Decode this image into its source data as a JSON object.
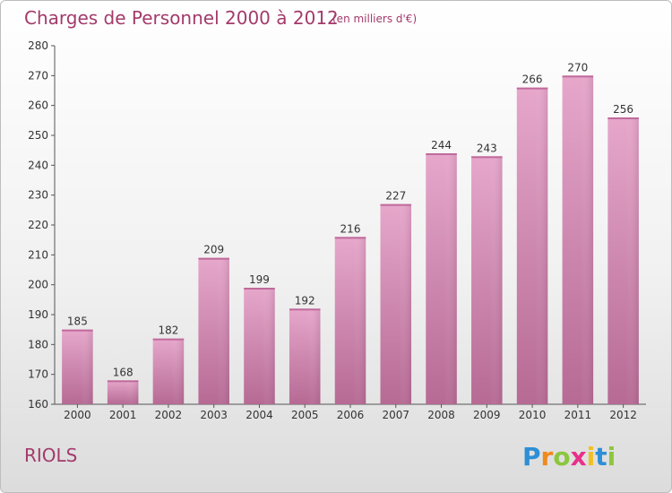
{
  "chart_data": {
    "type": "bar",
    "title": "Charges de Personnel 2000 à 2012",
    "subtitle": "(en milliers d'€)",
    "categories": [
      "2000",
      "2001",
      "2002",
      "2003",
      "2004",
      "2005",
      "2006",
      "2007",
      "2008",
      "2009",
      "2010",
      "2011",
      "2012"
    ],
    "values": [
      185,
      168,
      182,
      209,
      199,
      192,
      216,
      227,
      244,
      243,
      266,
      270,
      256
    ],
    "ylim": [
      160,
      280
    ],
    "yticks": [
      160,
      170,
      180,
      190,
      200,
      210,
      220,
      230,
      240,
      250,
      260,
      270,
      280
    ],
    "grid": false,
    "legend": "none",
    "bar_color": "#d98cb8",
    "bar_color_dark": "#b5608f"
  },
  "commune": "RIOLS",
  "brand": {
    "letters": [
      "P",
      "r",
      "o",
      "x",
      "i",
      "t",
      "i"
    ],
    "colors": [
      "#2d8fd6",
      "#f08a1c",
      "#8cc63e",
      "#e8308a",
      "#f2c01e",
      "#2d8fd6",
      "#8cc63e"
    ]
  }
}
